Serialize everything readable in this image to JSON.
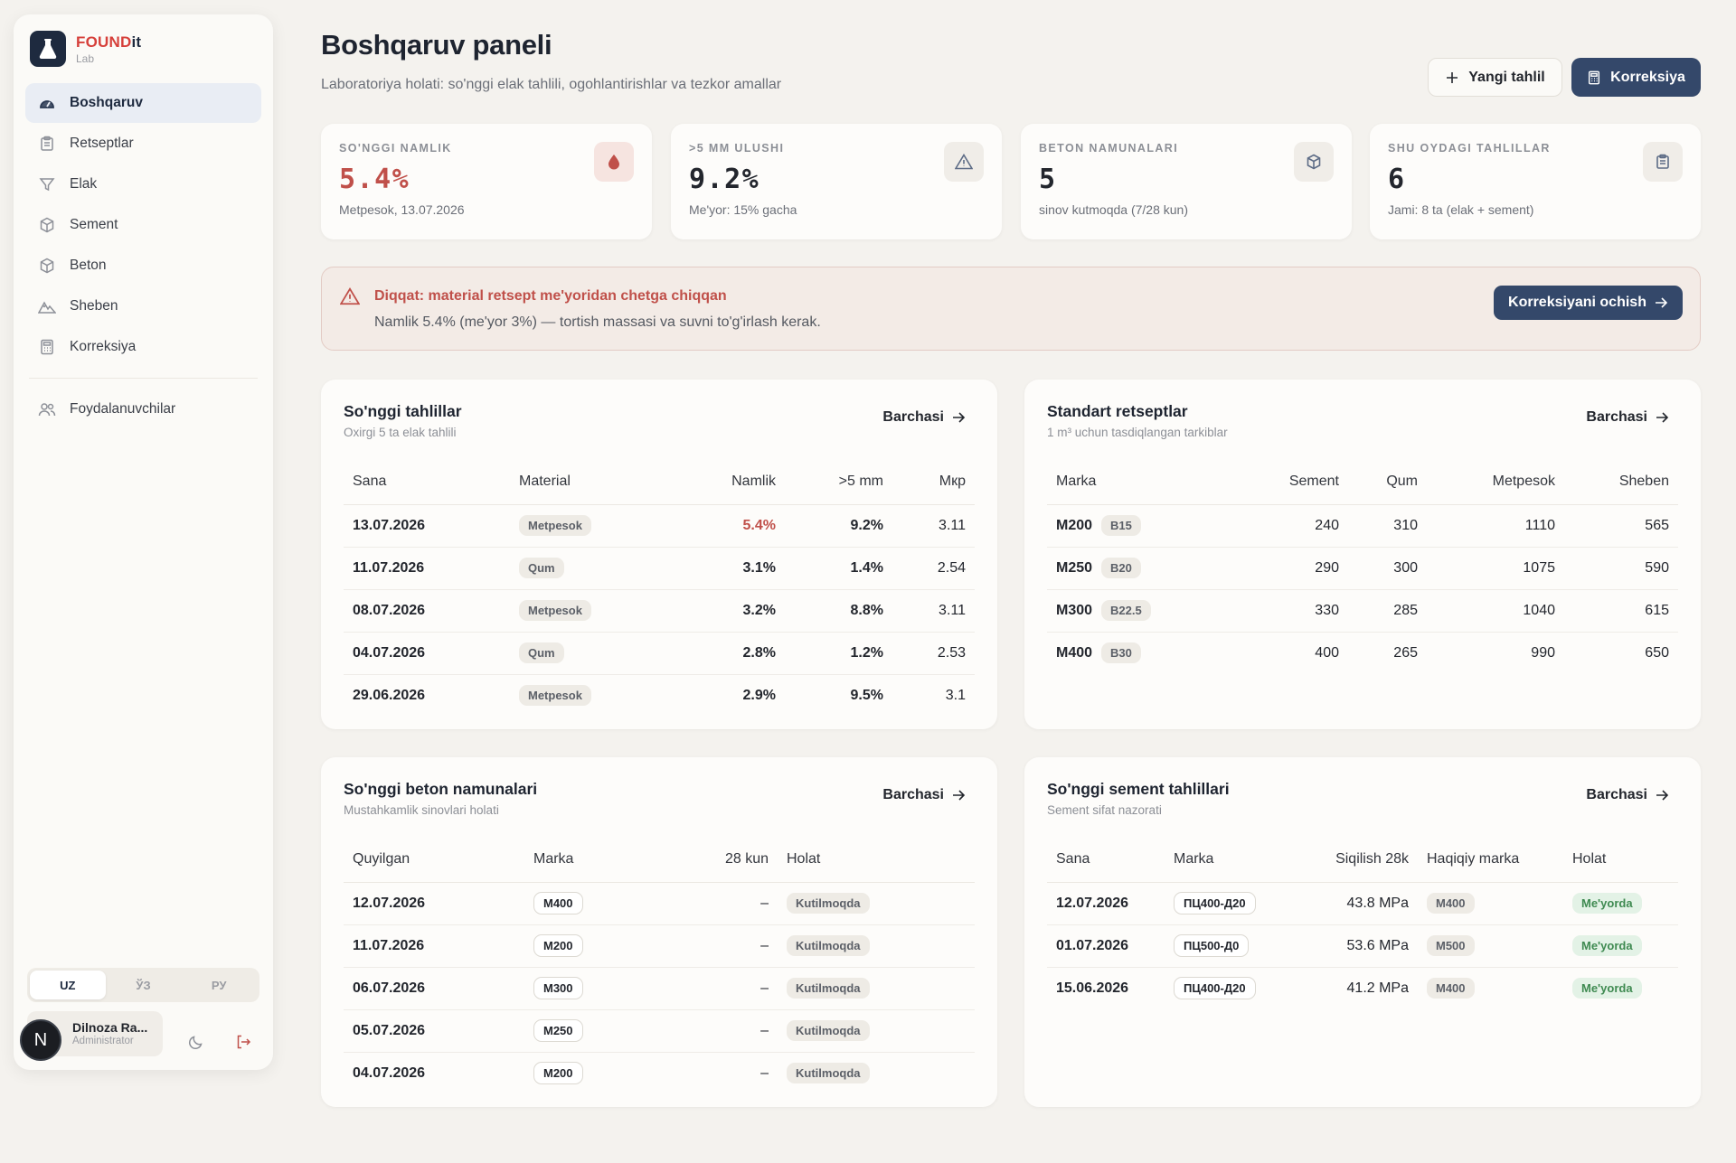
{
  "brand": {
    "name_found": "FOUND",
    "name_it": "it",
    "sub": "Lab"
  },
  "sidebar": {
    "items": [
      {
        "label": "Boshqaruv",
        "icon": "dashboard-gauge-icon",
        "active": true
      },
      {
        "label": "Retseptlar",
        "icon": "clipboard-icon"
      },
      {
        "label": "Elak",
        "icon": "filter-funnel-icon"
      },
      {
        "label": "Sement",
        "icon": "cube-icon"
      },
      {
        "label": "Beton",
        "icon": "cube-icon"
      },
      {
        "label": "Sheben",
        "icon": "mountain-icon"
      },
      {
        "label": "Korreksiya",
        "icon": "calculator-icon"
      }
    ],
    "secondary": [
      {
        "label": "Foydalanuvchilar",
        "icon": "users-icon"
      }
    ],
    "languages": [
      "UZ",
      "ЎЗ",
      "РУ"
    ],
    "active_language": "UZ",
    "user": {
      "initial": "N",
      "name": "Dilnoza Ra...",
      "role": "Administrator"
    }
  },
  "header": {
    "title": "Boshqaruv paneli",
    "subtitle": "Laboratoriya holati: so'nggi elak tahlili, ogohlantirishlar va tezkor amallar",
    "new_analysis": "Yangi tahlil",
    "correction": "Korreksiya"
  },
  "stats": [
    {
      "label": "SO'NGGI NAMLIK",
      "value": "5.4%",
      "note": "Metpesok, 13.07.2026",
      "icon": "droplet-icon",
      "status": "danger"
    },
    {
      "label": ">5 MM ULUSHI",
      "value": "9.2%",
      "note": "Me'yor: 15% gacha",
      "icon": "warning-triangle-icon",
      "status": "normal"
    },
    {
      "label": "BETON NAMUNALARI",
      "value": "5",
      "note": "sinov kutmoqda (7/28 kun)",
      "icon": "cube-icon",
      "status": "normal"
    },
    {
      "label": "SHU OYDAGI TAHLILLAR",
      "value": "6",
      "note": "Jami: 8 ta (elak + sement)",
      "icon": "clipboard-icon",
      "status": "normal"
    }
  ],
  "alert": {
    "title": "Diqqat: material retsept me'yoridan chetga chiqqan",
    "text": "Namlik 5.4% (me'yor 3%) — tortish massasi va suvni to'g'irlash kerak.",
    "button": "Korreksiyani ochish"
  },
  "recent_analyses": {
    "title": "So'nggi tahlillar",
    "subtitle": "Oxirgi 5 ta elak tahlili",
    "link": "Barchasi",
    "columns": [
      "Sana",
      "Material",
      "Namlik",
      ">5 mm",
      "Мкр"
    ],
    "rows": [
      {
        "date": "13.07.2026",
        "material": "Metpesok",
        "moisture": "5.4%",
        "over5": "9.2%",
        "mkr": "3.11",
        "alert": true
      },
      {
        "date": "11.07.2026",
        "material": "Qum",
        "moisture": "3.1%",
        "over5": "1.4%",
        "mkr": "2.54",
        "alert": false
      },
      {
        "date": "08.07.2026",
        "material": "Metpesok",
        "moisture": "3.2%",
        "over5": "8.8%",
        "mkr": "3.11",
        "alert": false
      },
      {
        "date": "04.07.2026",
        "material": "Qum",
        "moisture": "2.8%",
        "over5": "1.2%",
        "mkr": "2.53",
        "alert": false
      },
      {
        "date": "29.06.2026",
        "material": "Metpesok",
        "moisture": "2.9%",
        "over5": "9.5%",
        "mkr": "3.1",
        "alert": false
      }
    ]
  },
  "standard_recipes": {
    "title": "Standart retseptlar",
    "subtitle": "1 m³ uchun tasdiqlangan tarkiblar",
    "link": "Barchasi",
    "columns": [
      "Marka",
      "Sement",
      "Qum",
      "Metpesok",
      "Sheben"
    ],
    "rows": [
      {
        "marka": "M200",
        "klass": "B15",
        "cement": "240",
        "sand": "310",
        "metpesok": "1110",
        "sheben": "565"
      },
      {
        "marka": "M250",
        "klass": "B20",
        "cement": "290",
        "sand": "300",
        "metpesok": "1075",
        "sheben": "590"
      },
      {
        "marka": "M300",
        "klass": "B22.5",
        "cement": "330",
        "sand": "285",
        "metpesok": "1040",
        "sheben": "615"
      },
      {
        "marka": "M400",
        "klass": "B30",
        "cement": "400",
        "sand": "265",
        "metpesok": "990",
        "sheben": "650"
      }
    ]
  },
  "concrete_samples": {
    "title": "So'nggi beton namunalari",
    "subtitle": "Mustahkamlik sinovlari holati",
    "link": "Barchasi",
    "columns": [
      "Quyilgan",
      "Marka",
      "28 kun",
      "Holat"
    ],
    "rows": [
      {
        "date": "12.07.2026",
        "marka": "M400",
        "d28": "–",
        "status": "Kutilmoqda"
      },
      {
        "date": "11.07.2026",
        "marka": "M200",
        "d28": "–",
        "status": "Kutilmoqda"
      },
      {
        "date": "06.07.2026",
        "marka": "M300",
        "d28": "–",
        "status": "Kutilmoqda"
      },
      {
        "date": "05.07.2026",
        "marka": "M250",
        "d28": "–",
        "status": "Kutilmoqda"
      },
      {
        "date": "04.07.2026",
        "marka": "M200",
        "d28": "–",
        "status": "Kutilmoqda"
      }
    ]
  },
  "cement_analyses": {
    "title": "So'nggi sement tahlillari",
    "subtitle": "Sement sifat nazorati",
    "link": "Barchasi",
    "columns": [
      "Sana",
      "Marka",
      "Siqilish 28k",
      "Haqiqiy marka",
      "Holat"
    ],
    "rows": [
      {
        "date": "12.07.2026",
        "marka": "ПЦ400-Д20",
        "strength": "43.8 MPa",
        "actual": "M400",
        "status": "Me'yorda"
      },
      {
        "date": "01.07.2026",
        "marka": "ПЦ500-Д0",
        "strength": "53.6 MPa",
        "actual": "M500",
        "status": "Me'yorda"
      },
      {
        "date": "15.06.2026",
        "marka": "ПЦ400-Д20",
        "strength": "41.2 MPa",
        "actual": "M400",
        "status": "Me'yorda"
      }
    ]
  },
  "colors": {
    "primary": "#34486a",
    "danger": "#c0504a",
    "ok": "#3f8a51",
    "background": "#f4f2ee"
  }
}
